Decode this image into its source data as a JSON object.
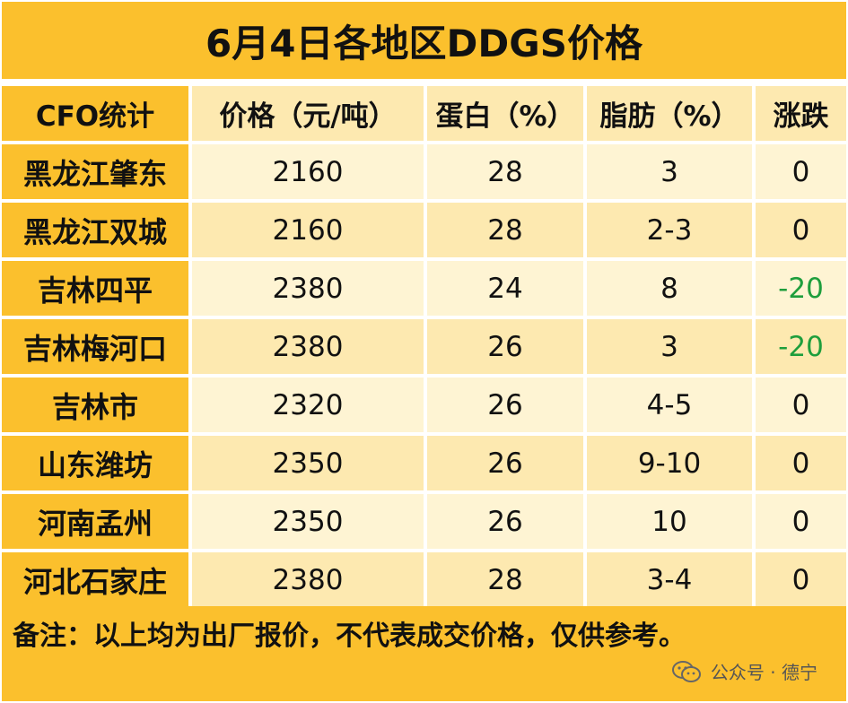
{
  "title": "6月4日各地区DDGS价格",
  "headers": [
    "CFO统计",
    "价格（元/吨）",
    "蛋白（%）",
    "脂肪（%）",
    "涨跌"
  ],
  "rows": [
    [
      "黑龙江肇东",
      "2160",
      "28",
      "3",
      "0"
    ],
    [
      "黑龙江双城",
      "2160",
      "28",
      "2-3",
      "0"
    ],
    [
      "吉林四平",
      "2380",
      "24",
      "8",
      "-20"
    ],
    [
      "吉林梅河口",
      "2380",
      "26",
      "3",
      "-20"
    ],
    [
      "吉林市",
      "2320",
      "26",
      "4-5",
      "0"
    ],
    [
      "山东潍坊",
      "2350",
      "26",
      "9-10",
      "0"
    ],
    [
      "河南孟州",
      "2350",
      "26",
      "10",
      "0"
    ],
    [
      "河北石家庄",
      "2380",
      "28",
      "3-4",
      "0"
    ]
  ],
  "note": "备注：以上均为出厂报价，不代表成交价格，仅供参考。",
  "watermark": "公众号 · 德宁",
  "watermark_icon": "wechat-icon",
  "colors": {
    "header_yellow": "#fbc02d",
    "row_light": "#fef4d3",
    "row_dark": "#fde9b0",
    "decrease": "#1e9e3c"
  }
}
